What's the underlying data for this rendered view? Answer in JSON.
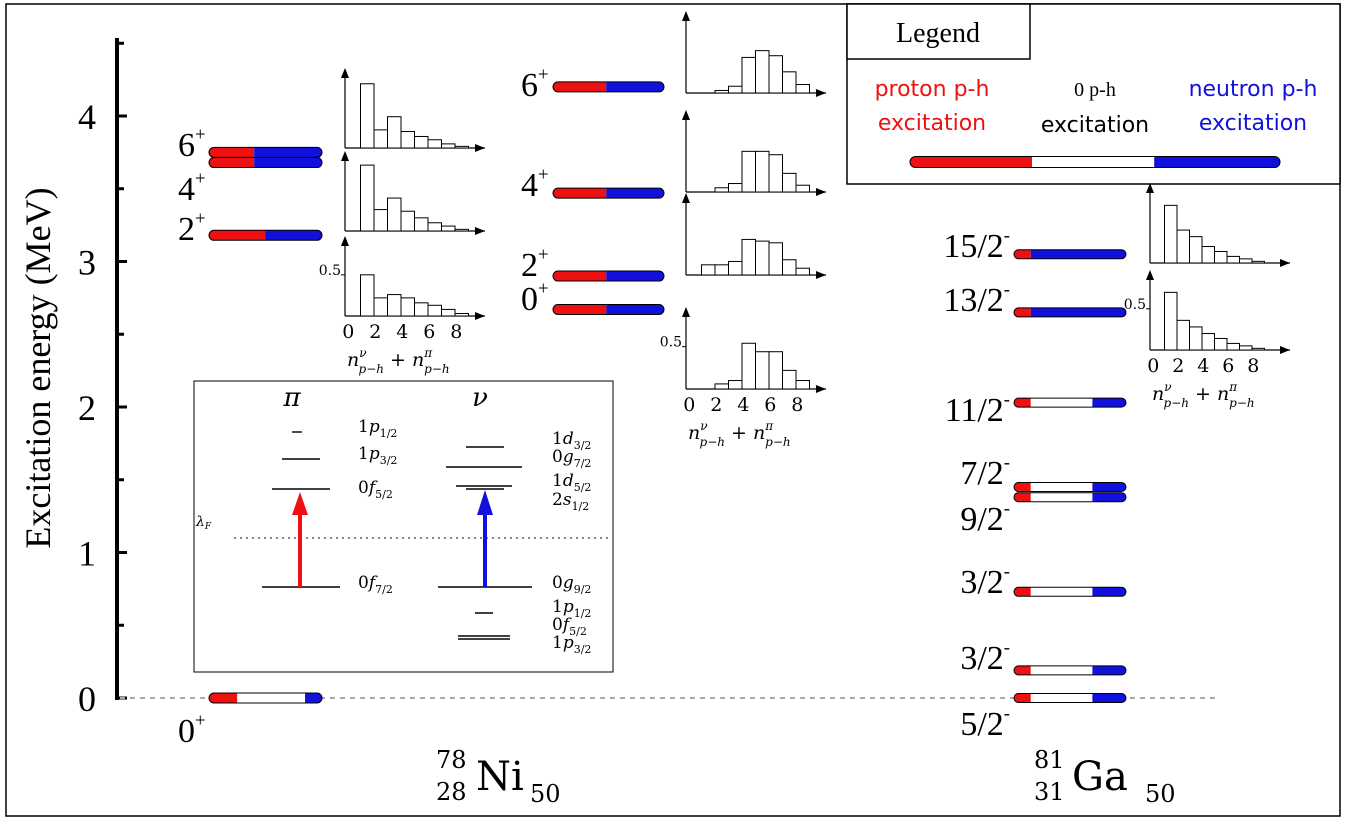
{
  "axis": {
    "ylabel": "Excitation energy (MeV)",
    "ticks": [
      "0",
      "1",
      "2",
      "3",
      "4"
    ]
  },
  "colors": {
    "proton": "#ee1111",
    "neutron": "#1111dd",
    "zero": "#ffffff",
    "dotted": "#999999"
  },
  "legend": {
    "title": "Legend",
    "proton_line1": "proton p-h",
    "proton_line2": "excitation",
    "zero_line1": "0 p-h",
    "zero_line2": "excitation",
    "neutron_line1": "neutron p-h",
    "neutron_line2": "excitation"
  },
  "nuclei": {
    "ni": {
      "A": "78",
      "Z": "28",
      "symbol": "Ni",
      "N": "50"
    },
    "ga": {
      "A": "81",
      "Z": "31",
      "symbol": "Ga",
      "N": "50"
    }
  },
  "levels": {
    "ni_exp": [
      {
        "spin": "0",
        "parity": "+",
        "energy": 0.0,
        "proton": 0.25,
        "zero": 0.6,
        "neutron": 0.15
      },
      {
        "spin": "2",
        "parity": "+",
        "energy": 3.18,
        "proton": 0.5,
        "zero": 0.0,
        "neutron": 0.5
      },
      {
        "spin": "4",
        "parity": "+",
        "energy": 3.68,
        "proton": 0.4,
        "zero": 0.0,
        "neutron": 0.6
      },
      {
        "spin": "6",
        "parity": "+",
        "energy": 3.75,
        "proton": 0.4,
        "zero": 0.0,
        "neutron": 0.6
      }
    ],
    "ni_calc": [
      {
        "spin": "0",
        "parity": "+",
        "energy": 2.67,
        "proton": 0.48,
        "zero": 0.0,
        "neutron": 0.52
      },
      {
        "spin": "2",
        "parity": "+",
        "energy": 2.9,
        "proton": 0.48,
        "zero": 0.0,
        "neutron": 0.52
      },
      {
        "spin": "4",
        "parity": "+",
        "energy": 3.47,
        "proton": 0.48,
        "zero": 0.0,
        "neutron": 0.52
      },
      {
        "spin": "6",
        "parity": "+",
        "energy": 4.2,
        "proton": 0.48,
        "zero": 0.0,
        "neutron": 0.52
      }
    ],
    "ga": [
      {
        "spin": "5/2",
        "parity": "-",
        "energy": 0.0,
        "proton": 0.15,
        "zero": 0.55,
        "neutron": 0.3
      },
      {
        "spin": "3/2",
        "parity": "-",
        "energy": 0.19,
        "proton": 0.15,
        "zero": 0.55,
        "neutron": 0.3
      },
      {
        "spin": "3/2",
        "parity": "-",
        "energy": 0.73,
        "proton": 0.15,
        "zero": 0.55,
        "neutron": 0.3
      },
      {
        "spin": "9/2",
        "parity": "-",
        "energy": 1.38,
        "proton": 0.15,
        "zero": 0.55,
        "neutron": 0.3
      },
      {
        "spin": "7/2",
        "parity": "-",
        "energy": 1.45,
        "proton": 0.15,
        "zero": 0.55,
        "neutron": 0.3
      },
      {
        "spin": "11/2",
        "parity": "-",
        "energy": 2.03,
        "proton": 0.15,
        "zero": 0.55,
        "neutron": 0.3
      },
      {
        "spin": "13/2",
        "parity": "-",
        "energy": 2.65,
        "proton": 0.15,
        "zero": 0.0,
        "neutron": 0.85
      },
      {
        "spin": "15/2",
        "parity": "-",
        "energy": 3.05,
        "proton": 0.15,
        "zero": 0.0,
        "neutron": 0.85
      }
    ]
  },
  "histograms": {
    "tick_labels": [
      "0",
      "2",
      "4",
      "6",
      "8"
    ],
    "half_label": "0.5",
    "xlabel_nu": "ν",
    "xlabel_pi": "π",
    "xlabel_ph": "p−h",
    "ni_exp_top": [
      0.0,
      0.78,
      0.22,
      0.38,
      0.2,
      0.14,
      0.1,
      0.05,
      0.02
    ],
    "ni_exp_mid": [
      0.0,
      0.8,
      0.26,
      0.4,
      0.24,
      0.16,
      0.1,
      0.06,
      0.02
    ],
    "ni_exp_bot": [
      0.0,
      0.5,
      0.22,
      0.26,
      0.22,
      0.16,
      0.13,
      0.08,
      0.03
    ],
    "ni_calc_6": [
      0.0,
      0.0,
      0.03,
      0.08,
      0.42,
      0.5,
      0.44,
      0.25,
      0.1
    ],
    "ni_calc_4": [
      0.0,
      0.0,
      0.05,
      0.1,
      0.48,
      0.48,
      0.44,
      0.22,
      0.08
    ],
    "ni_calc_2": [
      0.0,
      0.12,
      0.12,
      0.16,
      0.42,
      0.4,
      0.38,
      0.18,
      0.08
    ],
    "ni_calc_0": [
      0.0,
      0.0,
      0.06,
      0.1,
      0.54,
      0.44,
      0.44,
      0.22,
      0.1
    ],
    "ga_top": [
      0.0,
      0.7,
      0.4,
      0.32,
      0.2,
      0.14,
      0.08,
      0.05,
      0.02
    ],
    "ga_bot": [
      0.0,
      0.7,
      0.36,
      0.28,
      0.2,
      0.14,
      0.08,
      0.05,
      0.02
    ]
  },
  "inset": {
    "pi": "π",
    "nu": "ν",
    "lambda_f": "λ",
    "lambda_sub": "F",
    "proton_levels": [
      {
        "n": "1",
        "l": "p",
        "j": "1/2"
      },
      {
        "n": "1",
        "l": "p",
        "j": "3/2"
      },
      {
        "n": "0",
        "l": "f",
        "j": "5/2"
      },
      {
        "n": "0",
        "l": "f",
        "j": "7/2"
      }
    ],
    "neutron_levels": [
      {
        "n": "1",
        "l": "d",
        "j": "3/2"
      },
      {
        "n": "0",
        "l": "g",
        "j": "7/2"
      },
      {
        "n": "1",
        "l": "d",
        "j": "5/2"
      },
      {
        "n": "2",
        "l": "s",
        "j": "1/2"
      },
      {
        "n": "0",
        "l": "g",
        "j": "9/2"
      },
      {
        "n": "1",
        "l": "p",
        "j": "1/2"
      },
      {
        "n": "0",
        "l": "f",
        "j": "5/2"
      },
      {
        "n": "1",
        "l": "p",
        "j": "3/2"
      }
    ]
  }
}
